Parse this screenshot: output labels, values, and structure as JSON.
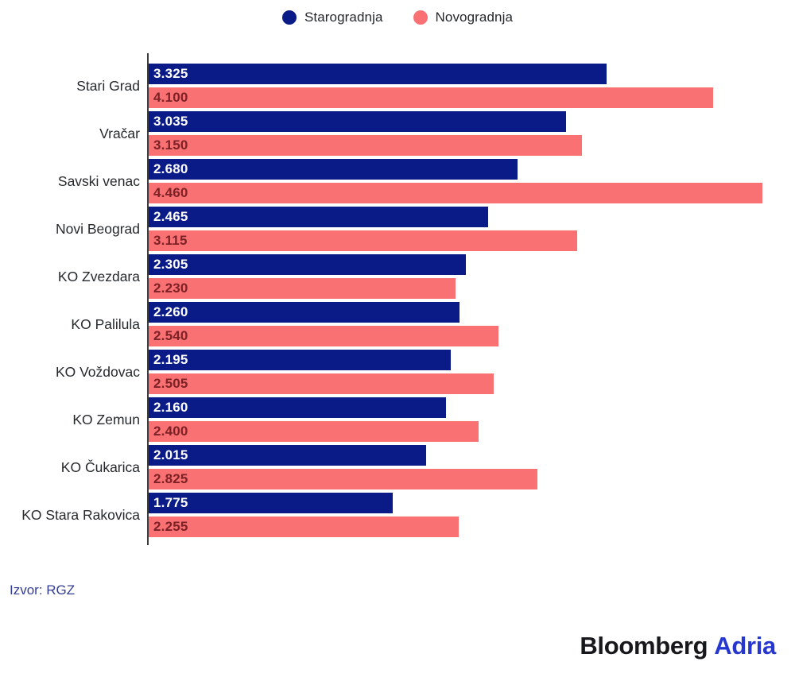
{
  "legend": {
    "items": [
      {
        "label": "Starogradnja",
        "color": "#0a1b87"
      },
      {
        "label": "Novogradnja",
        "color": "#f97173"
      }
    ]
  },
  "chart_data": {
    "type": "bar",
    "orientation": "horizontal",
    "categories": [
      "Stari Grad",
      "Vračar",
      "Savski venac",
      "Novi Beograd",
      "KO Zvezdara",
      "KO Palilula",
      "KO Voždovac",
      "KO Zemun",
      "KO Čukarica",
      "KO Stara Rakovica"
    ],
    "series": [
      {
        "name": "Starogradnja",
        "color": "#0a1b87",
        "value_label_color": "#ffffff",
        "values": [
          3325,
          3035,
          2680,
          2465,
          2305,
          2260,
          2195,
          2160,
          2015,
          1775
        ],
        "value_labels": [
          "3.325",
          "3.035",
          "2.680",
          "2.465",
          "2.305",
          "2.260",
          "2.195",
          "2.160",
          "2.015",
          "1.775"
        ]
      },
      {
        "name": "Novogradnja",
        "color": "#f97173",
        "value_label_color": "#7c2125",
        "values": [
          4100,
          3150,
          4460,
          3115,
          2230,
          2540,
          2505,
          2400,
          2825,
          2255
        ],
        "value_labels": [
          "4.100",
          "3.150",
          "4.460",
          "3.115",
          "2.230",
          "2.540",
          "2.505",
          "2.400",
          "2.825",
          "2.255"
        ]
      }
    ],
    "xlim": [
      0,
      4460
    ],
    "grid": false,
    "legend_position": "top-center",
    "value_labels_inside_bars": true,
    "axis_color": "#3c3c3c"
  },
  "source": {
    "text": "Izvor: RGZ",
    "color": "#333d94"
  },
  "logo": {
    "bloomberg": "Bloomberg",
    "adria": "Adria",
    "bloomberg_color": "#16181c",
    "adria_color": "#2637d0"
  }
}
